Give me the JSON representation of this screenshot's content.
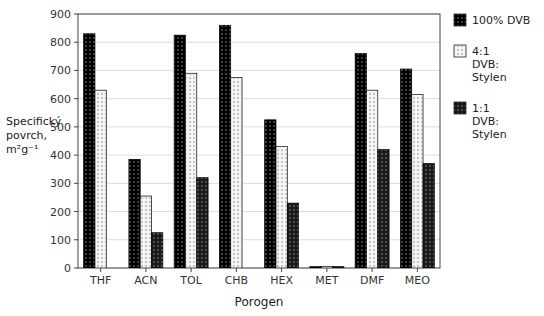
{
  "chart_data": {
    "type": "bar",
    "categories": [
      "THF",
      "ACN",
      "TOL",
      "CHB",
      "HEX",
      "MET",
      "DMF",
      "MEO"
    ],
    "series": [
      {
        "name": "100% DVB",
        "color": "black",
        "values": [
          830,
          385,
          825,
          860,
          525,
          5,
          760,
          705
        ]
      },
      {
        "name": "4:1\nDVB:\nStylen",
        "color": "#f5f5f5",
        "values": [
          630,
          255,
          690,
          675,
          430,
          5,
          630,
          615
        ]
      },
      {
        "name": "1:1\nDVB:\nStylen",
        "color": "#1a1a1a",
        "values": [
          0,
          125,
          320,
          0,
          230,
          5,
          420,
          370
        ]
      }
    ],
    "xlabel": "Porogen",
    "ylabel": "Specifický\npovrch,\nm²g⁻¹",
    "ylim": [
      0,
      900
    ],
    "yticks": [
      0,
      100,
      200,
      300,
      400,
      500,
      600,
      700,
      800,
      900
    ],
    "grid": true,
    "legend": "right"
  }
}
